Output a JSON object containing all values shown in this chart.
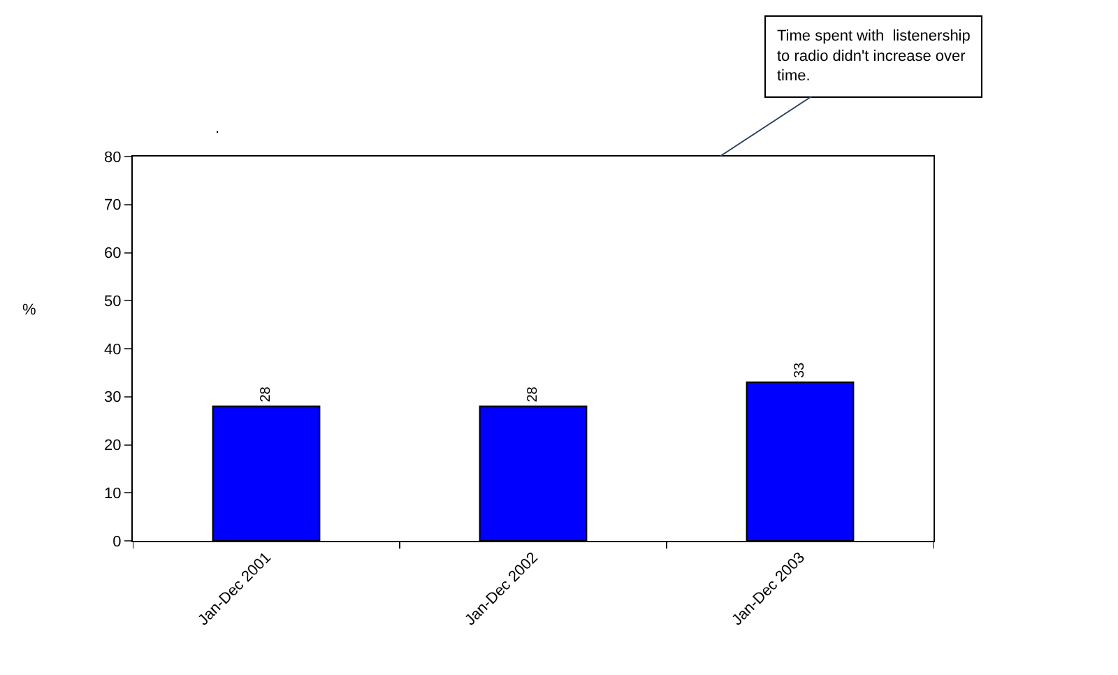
{
  "chart_data": {
    "type": "bar",
    "ylabel": "%",
    "categories": [
      "Jan-Dec 2001",
      "Jan-Dec 2002",
      "Jan-Dec 2003"
    ],
    "values": [
      28,
      28,
      33
    ],
    "color": "#0000ff",
    "data_labels": true,
    "ylim": [
      0,
      80
    ],
    "yticks": [
      0,
      10,
      20,
      30,
      40,
      50,
      60,
      70,
      80
    ],
    "annotations": [
      ".",
      "Time spent with  listenership\nto radio didn't increase over\ntime."
    ]
  }
}
